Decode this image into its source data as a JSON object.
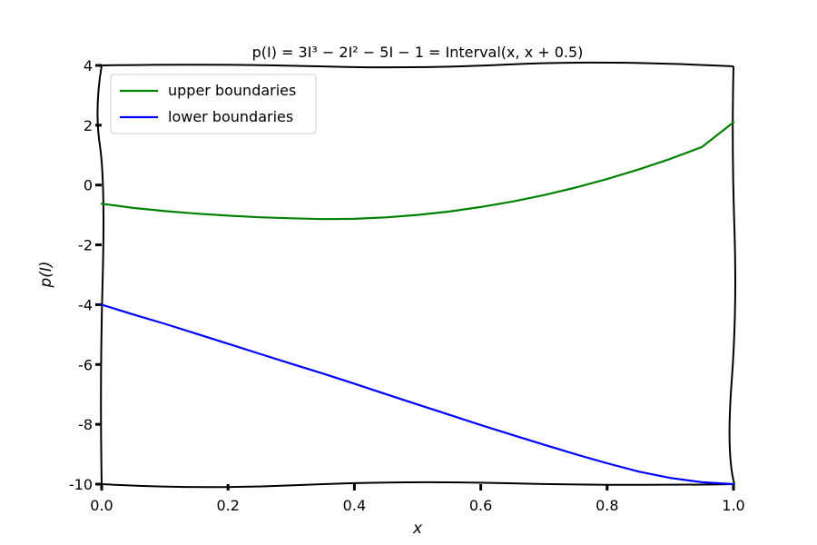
{
  "chart_data": {
    "type": "line",
    "title": "p(I) = 3I³ − 2I² − 5I − 1 = Interval(x, x + 0.5)",
    "xlabel": "x",
    "ylabel": "p(I)",
    "xlim": [
      0.0,
      1.0
    ],
    "ylim": [
      -10,
      4
    ],
    "xticks": [
      "0.0",
      "0.2",
      "0.4",
      "0.6",
      "0.8",
      "1.0"
    ],
    "yticks": [
      "4",
      "2",
      "0",
      "-2",
      "-4",
      "-6",
      "-8",
      "-10"
    ],
    "grid": false,
    "legend_position": "top-left",
    "x": [
      0.0,
      0.05,
      0.1,
      0.15,
      0.2,
      0.25,
      0.3,
      0.35,
      0.4,
      0.45,
      0.5,
      0.55,
      0.6,
      0.65,
      0.7,
      0.75,
      0.8,
      0.85,
      0.9,
      0.95,
      1.0
    ],
    "series": [
      {
        "name": "upper boundaries",
        "color": "#008000",
        "values": [
          -0.625,
          -0.764,
          -0.872,
          -0.956,
          -1.024,
          -1.078,
          -1.112,
          -1.139,
          -1.128,
          -1.081,
          -1.0,
          -0.885,
          -0.736,
          -0.553,
          -0.336,
          -0.085,
          0.2,
          0.52,
          0.876,
          1.27,
          2.1
        ]
      },
      {
        "name": "lower boundaries",
        "color": "#0000ff",
        "values": [
          -4.0,
          -4.326,
          -4.641,
          -4.97,
          -5.304,
          -5.641,
          -5.972,
          -6.302,
          -6.64,
          -6.989,
          -7.336,
          -7.68,
          -8.024,
          -8.355,
          -8.681,
          -9.0,
          -9.3,
          -9.581,
          -9.792,
          -9.935,
          -10.0
        ]
      }
    ]
  }
}
